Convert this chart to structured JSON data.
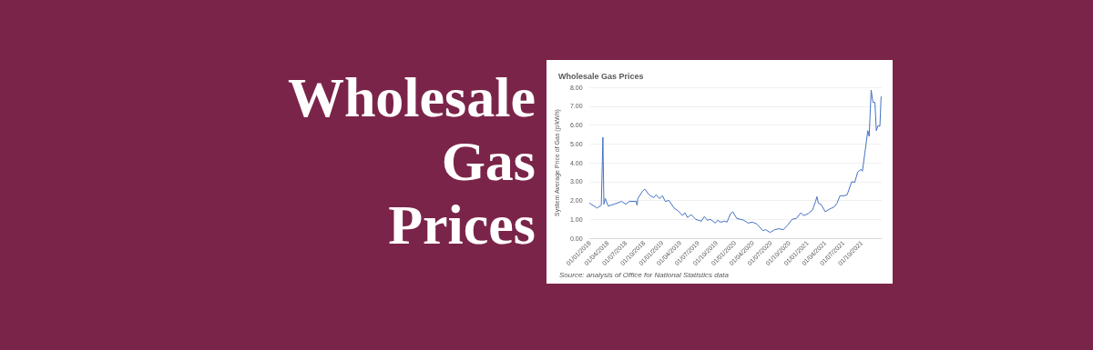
{
  "chart_data": {
    "type": "line",
    "title": "Wholesale Gas Prices",
    "ylabel": "System Average Price of Gas (p/kWh)",
    "annotations": [
      "Wholesale Gas Prices",
      "Source: analysis of Office for National Statistics data"
    ],
    "x": [
      "2018-01-01",
      "2018-02-07",
      "2018-02-28",
      "2018-03-08",
      "2018-03-13",
      "2018-03-20",
      "2018-04-04",
      "2018-05-03",
      "2018-06-10",
      "2018-07-01",
      "2018-07-19",
      "2018-08-22",
      "2018-08-27",
      "2018-08-31",
      "2018-09-24",
      "2018-10-05",
      "2018-10-27",
      "2018-11-19",
      "2018-12-01",
      "2018-12-18",
      "2019-01-02",
      "2019-01-16",
      "2019-02-04",
      "2019-03-01",
      "2019-03-22",
      "2019-04-13",
      "2019-04-25",
      "2019-05-08",
      "2019-05-27",
      "2019-06-18",
      "2019-07-17",
      "2019-08-01",
      "2019-08-16",
      "2019-09-01",
      "2019-09-25",
      "2019-10-07",
      "2019-10-21",
      "2019-11-12",
      "2019-11-23",
      "2019-12-11",
      "2019-12-22",
      "2020-01-11",
      "2020-02-16",
      "2020-03-08",
      "2020-03-31",
      "2020-04-22",
      "2020-05-21",
      "2020-06-05",
      "2020-06-27",
      "2020-07-19",
      "2020-08-10",
      "2020-09-02",
      "2020-09-24",
      "2020-10-16",
      "2020-11-07",
      "2020-11-29",
      "2020-12-13",
      "2021-01-05",
      "2021-01-27",
      "2021-02-11",
      "2021-02-18",
      "2021-02-25",
      "2021-03-10",
      "2021-04-01",
      "2021-04-24",
      "2021-05-15",
      "2021-05-30",
      "2021-06-14",
      "2021-07-06",
      "2021-07-20",
      "2021-08-12",
      "2021-08-27",
      "2021-09-11",
      "2021-09-28",
      "2021-10-05",
      "2021-10-17",
      "2021-11-01",
      "2021-11-08",
      "2021-11-18",
      "2021-11-27",
      "2021-12-07",
      "2021-12-14",
      "2021-12-22",
      "2022-01-01",
      "2022-01-07"
    ],
    "series": [
      {
        "color": "#4472c4",
        "values": [
          1.85,
          1.6,
          1.75,
          5.35,
          1.8,
          2.1,
          1.7,
          1.8,
          1.95,
          1.8,
          1.95,
          1.95,
          1.75,
          2.1,
          2.5,
          2.6,
          2.3,
          2.15,
          2.3,
          2.1,
          2.25,
          1.95,
          2.0,
          1.6,
          1.45,
          1.2,
          1.35,
          1.1,
          1.25,
          1.0,
          0.9,
          1.15,
          0.95,
          1.0,
          0.8,
          0.95,
          0.85,
          0.9,
          0.85,
          1.3,
          1.4,
          1.05,
          0.95,
          0.8,
          0.85,
          0.75,
          0.4,
          0.45,
          0.3,
          0.45,
          0.5,
          0.45,
          0.7,
          1.0,
          1.05,
          1.35,
          1.2,
          1.3,
          1.5,
          1.95,
          2.2,
          1.85,
          1.8,
          1.4,
          1.55,
          1.65,
          1.85,
          2.25,
          2.25,
          2.3,
          3.0,
          2.95,
          3.5,
          3.65,
          3.55,
          4.5,
          5.7,
          5.4,
          7.85,
          7.2,
          7.2,
          5.7,
          5.95,
          5.95,
          7.5
        ]
      }
    ],
    "xlim": [
      "2018-01-01",
      "2022-01-10"
    ],
    "xticks": [
      {
        "value": "2018-01-01",
        "label": "01/01/2018"
      },
      {
        "value": "2018-04-01",
        "label": "01/04/2018"
      },
      {
        "value": "2018-07-01",
        "label": "01/07/2018"
      },
      {
        "value": "2018-10-01",
        "label": "01/10/2018"
      },
      {
        "value": "2019-01-01",
        "label": "01/01/2019"
      },
      {
        "value": "2019-04-01",
        "label": "01/04/2019"
      },
      {
        "value": "2019-07-01",
        "label": "01/07/2019"
      },
      {
        "value": "2019-10-01",
        "label": "01/10/2019"
      },
      {
        "value": "2020-01-01",
        "label": "01/01/2020"
      },
      {
        "value": "2020-04-01",
        "label": "01/04/2020"
      },
      {
        "value": "2020-07-01",
        "label": "01/07/2020"
      },
      {
        "value": "2020-10-01",
        "label": "01/10/2020"
      },
      {
        "value": "2021-01-01",
        "label": "01/01/2021"
      },
      {
        "value": "2021-04-01",
        "label": "01/04/2021"
      },
      {
        "value": "2021-07-01",
        "label": "01/07/2021"
      },
      {
        "value": "2021-10-01",
        "label": "01/10/2021"
      }
    ],
    "ylim": [
      0,
      8
    ],
    "yticks": [
      {
        "value": 0,
        "label": "0.00"
      },
      {
        "value": 1,
        "label": "1.00"
      },
      {
        "value": 2,
        "label": "2.00"
      },
      {
        "value": 3,
        "label": "3.00"
      },
      {
        "value": 4,
        "label": "4.00"
      },
      {
        "value": 5,
        "label": "5.00"
      },
      {
        "value": 6,
        "label": "6.00"
      },
      {
        "value": 7,
        "label": "7.00"
      },
      {
        "value": 8,
        "label": "8.00"
      }
    ],
    "grid": "y",
    "marker": "none",
    "line_style": "solid"
  }
}
